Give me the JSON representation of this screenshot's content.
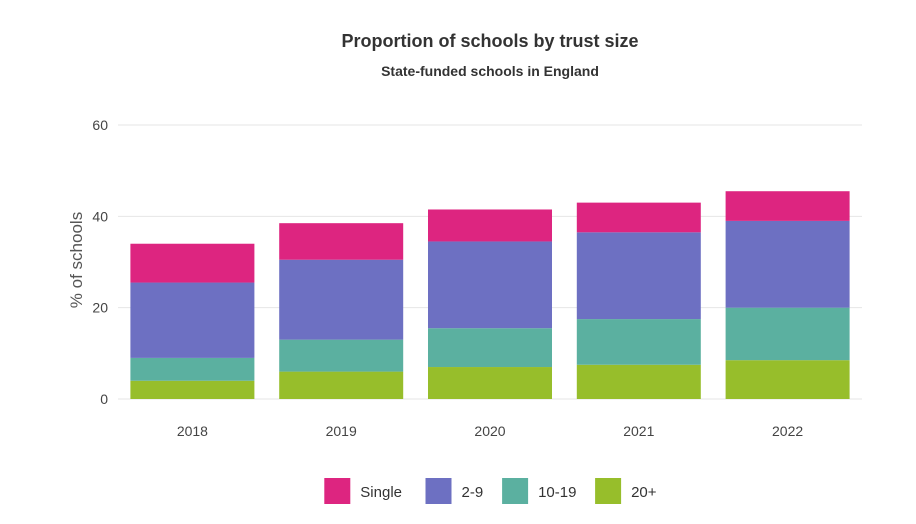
{
  "chart_data": {
    "type": "bar",
    "stacked": true,
    "title": "Proportion of schools by trust size",
    "subtitle": "State-funded schools in England",
    "xlabel": "",
    "ylabel": "% of schools",
    "ylim": [
      0,
      60
    ],
    "yticks": [
      0,
      20,
      40,
      60
    ],
    "grid": true,
    "legend_position": "bottom",
    "categories": [
      "2018",
      "2019",
      "2020",
      "2021",
      "2022"
    ],
    "series": [
      {
        "name": "20+",
        "color": "#97be2b",
        "values": [
          4,
          6,
          7,
          7.5,
          8.5
        ]
      },
      {
        "name": "10-19",
        "color": "#5bb0a0",
        "values": [
          5,
          7,
          8.5,
          10,
          11.5
        ]
      },
      {
        "name": "2-9",
        "color": "#6d70c2",
        "values": [
          16.5,
          17.5,
          19,
          19,
          19
        ]
      },
      {
        "name": "Single",
        "color": "#dd2580",
        "values": [
          8.5,
          8,
          7,
          6.5,
          6.5
        ]
      }
    ],
    "legend_order": [
      "Single",
      "2-9",
      "10-19",
      "20+"
    ]
  }
}
